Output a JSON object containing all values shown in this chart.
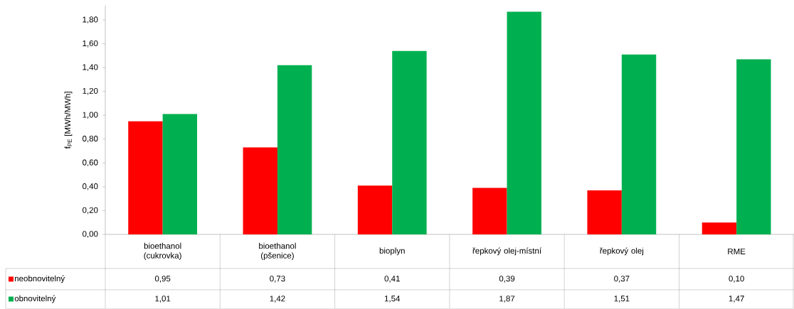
{
  "chart_data": {
    "type": "bar",
    "ylabel": "f$_{PE}$ [MWh/MWh]",
    "categories": [
      "bioethanol (cukrovka)",
      "bioethanol (pšenice)",
      "bioplyn",
      "řepkový olej-místní",
      "řepkový olej",
      "RME"
    ],
    "series": [
      {
        "name": "neobnovitelný",
        "color": "#ff0000",
        "values": [
          0.95,
          0.73,
          0.41,
          0.39,
          0.37,
          0.1
        ],
        "value_labels": [
          "0,95",
          "0,73",
          "0,41",
          "0,39",
          "0,37",
          "0,10"
        ]
      },
      {
        "name": "obnovitelný",
        "color": "#00b050",
        "values": [
          1.01,
          1.42,
          1.54,
          1.87,
          1.51,
          1.47
        ],
        "value_labels": [
          "1,01",
          "1,42",
          "1,54",
          "1,87",
          "1,51",
          "1,47"
        ]
      }
    ],
    "ylim": [
      0,
      1.92
    ],
    "yticks": [
      {
        "value": 0,
        "label": "0,00"
      },
      {
        "value": 0.2,
        "label": "0,20"
      },
      {
        "value": 0.4,
        "label": "0,40"
      },
      {
        "value": 0.6,
        "label": "0,60"
      },
      {
        "value": 0.8,
        "label": "0,80"
      },
      {
        "value": 1.0,
        "label": "1,00"
      },
      {
        "value": 1.2,
        "label": "1,20"
      },
      {
        "value": 1.4,
        "label": "1,40"
      },
      {
        "value": 1.6,
        "label": "1,60"
      },
      {
        "value": 1.8,
        "label": "1,80"
      }
    ],
    "grid": false,
    "legend": "bottom left"
  }
}
